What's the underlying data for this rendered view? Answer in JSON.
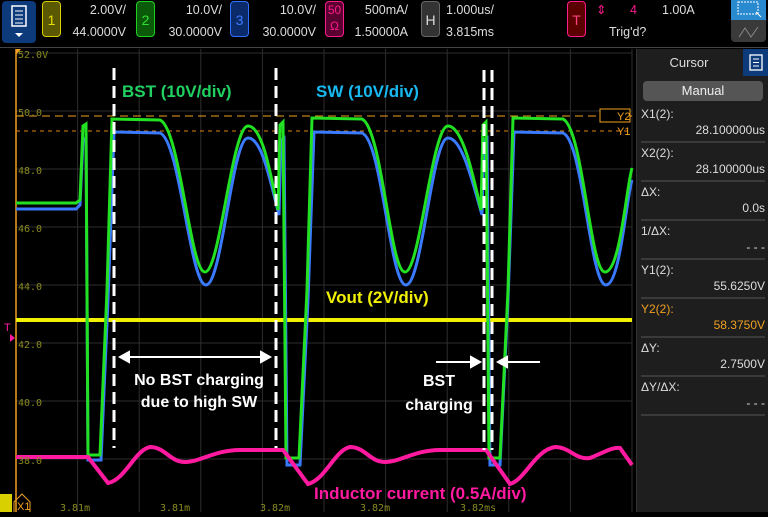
{
  "toolbar": {
    "ch1": {
      "label": "1",
      "scale": "2.00V/",
      "offset": "44.0000V",
      "color": "#e8e000"
    },
    "ch2": {
      "label": "2",
      "scale": "10.0V/",
      "offset": "30.0000V",
      "color": "#20d020"
    },
    "ch3": {
      "label": "3",
      "scale": "10.0V/",
      "offset": "30.0000V",
      "color": "#3070ff"
    },
    "ch4": {
      "label": "50",
      "label2": "Ω",
      "scale": "500mA/",
      "offset": "1.50000A",
      "color": "#ff1a8c"
    },
    "horizontal": {
      "label": "H",
      "scale": "1.000us/",
      "delay": "3.815ms"
    },
    "trigger": {
      "label": "T",
      "source": "4",
      "level": "1.00A",
      "status": "Trig'd?"
    }
  },
  "plot": {
    "y_labels": [
      "52.0V",
      "50.0",
      "48.0",
      "46.0",
      "44.0",
      "42.0",
      "40.0",
      "38.0"
    ],
    "x_labels": [
      "3.81m",
      "3.81m",
      "3.82m",
      "3.82m",
      "3.82ms"
    ],
    "markers": {
      "trigger": "T",
      "y2": "Y2",
      "y1": "Y1",
      "x1": "X1"
    },
    "annotations": {
      "bst": "BST (10V/div)",
      "sw": "SW (10V/div)",
      "vout": "Vout (2V/div)",
      "no_bst_1": "No BST charging",
      "no_bst_2": "due to high SW",
      "bst_charging_1": "BST",
      "bst_charging_2": "charging",
      "inductor": "Inductor current (0.5A/div)"
    }
  },
  "cursor_panel": {
    "tab": "Cursor",
    "mode": "Manual",
    "rows": [
      {
        "label": "X1(2):",
        "value": "28.100000us"
      },
      {
        "label": "X2(2):",
        "value": "28.100000us"
      },
      {
        "label": "ΔX:",
        "value": "0.0s"
      },
      {
        "label": "1/ΔX:",
        "value": "- - -"
      },
      {
        "label": "Y1(2):",
        "value": "55.6250V"
      },
      {
        "label": "Y2(2):",
        "value": "58.3750V"
      },
      {
        "label": "ΔY:",
        "value": "2.7500V"
      },
      {
        "label": "ΔY/ΔX:",
        "value": "- - -"
      }
    ]
  },
  "colors": {
    "bst": "#22e022",
    "sw": "#3a7aff",
    "vout": "#f0f000",
    "inductor": "#ff1aa0",
    "cursor": "#f0a020"
  }
}
